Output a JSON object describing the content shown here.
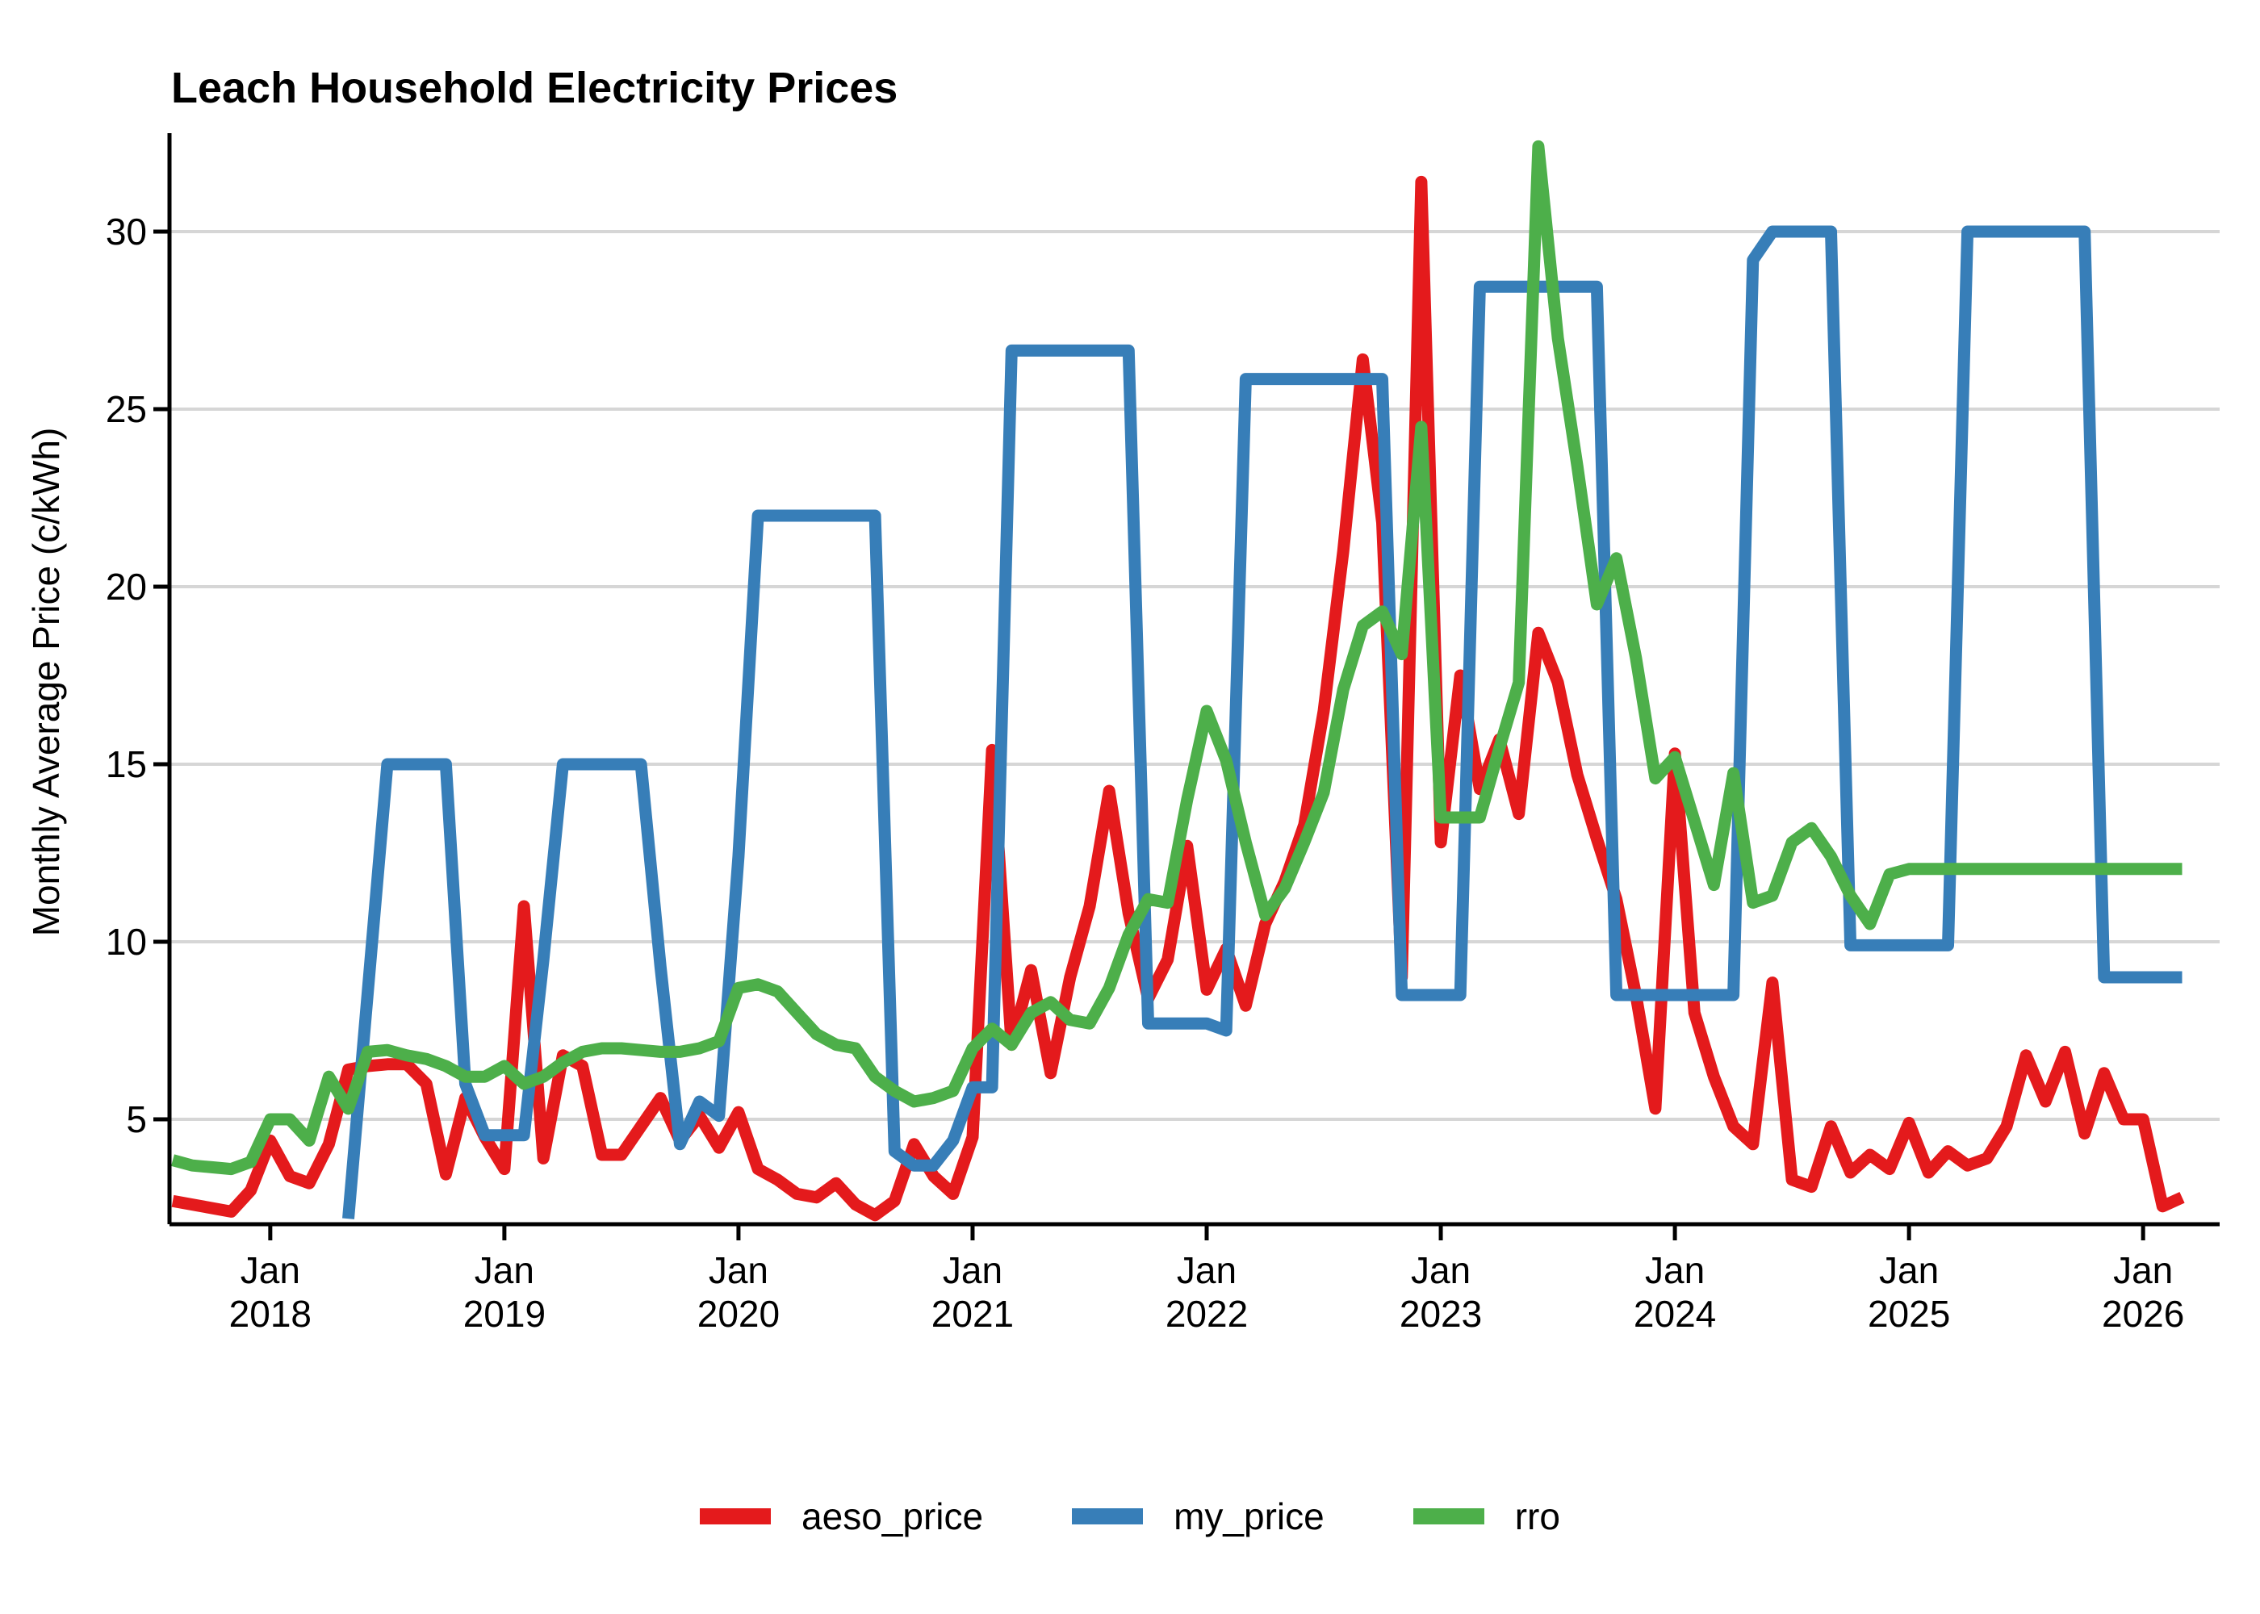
{
  "title": "Leach Household Electricity Prices",
  "y_axis": {
    "label": "Monthly Average Price (c/kWh)",
    "ticks": [
      5,
      10,
      15,
      20,
      25,
      30
    ]
  },
  "x_axis": {
    "ticks": [
      {
        "line1": "Jan",
        "line2": "2018",
        "x": "2018-01"
      },
      {
        "line1": "Jan",
        "line2": "2019",
        "x": "2019-01"
      },
      {
        "line1": "Jan",
        "line2": "2020",
        "x": "2020-01"
      },
      {
        "line1": "Jan",
        "line2": "2021",
        "x": "2021-01"
      },
      {
        "line1": "Jan",
        "line2": "2022",
        "x": "2022-01"
      },
      {
        "line1": "Jan",
        "line2": "2023",
        "x": "2023-01"
      },
      {
        "line1": "Jan",
        "line2": "2024",
        "x": "2024-01"
      },
      {
        "line1": "Jan",
        "line2": "2025",
        "x": "2025-01"
      },
      {
        "line1": "Jan",
        "line2": "2026",
        "x": "2026-01"
      }
    ]
  },
  "legend": {
    "items": [
      {
        "label": "aeso_price",
        "color": "#E41A1C"
      },
      {
        "label": "my_price",
        "color": "#377EB8"
      },
      {
        "label": "rro",
        "color": "#4DAF4A"
      }
    ]
  },
  "colors": {
    "grid": "#D6D6D6",
    "axis": "#000000",
    "background": "#FFFFFF"
  },
  "chart_data": {
    "type": "line",
    "title": "Leach Household Electricity Prices",
    "xlabel": "",
    "ylabel": "Monthly Average Price (c/kWh)",
    "ylim": [
      2.0,
      32.8
    ],
    "grid": "horizontal-only",
    "legend_position": "bottom-center",
    "x": [
      "2017-08",
      "2017-09",
      "2017-10",
      "2017-11",
      "2017-12",
      "2018-01",
      "2018-02",
      "2018-03",
      "2018-04",
      "2018-05",
      "2018-06",
      "2018-07",
      "2018-08",
      "2018-09",
      "2018-10",
      "2018-11",
      "2018-12",
      "2019-01",
      "2019-02",
      "2019-03",
      "2019-04",
      "2019-05",
      "2019-06",
      "2019-07",
      "2019-08",
      "2019-09",
      "2019-10",
      "2019-11",
      "2019-12",
      "2020-01",
      "2020-02",
      "2020-03",
      "2020-04",
      "2020-05",
      "2020-06",
      "2020-07",
      "2020-08",
      "2020-09",
      "2020-10",
      "2020-11",
      "2020-12",
      "2021-01",
      "2021-02",
      "2021-03",
      "2021-04",
      "2021-05",
      "2021-06",
      "2021-07",
      "2021-08",
      "2021-09",
      "2021-10",
      "2021-11",
      "2021-12",
      "2022-01",
      "2022-02",
      "2022-03",
      "2022-04",
      "2022-05",
      "2022-06",
      "2022-07",
      "2022-08",
      "2022-09",
      "2022-10",
      "2022-11",
      "2022-12",
      "2023-01",
      "2023-02",
      "2023-03",
      "2023-04",
      "2023-05",
      "2023-06",
      "2023-07",
      "2023-08",
      "2023-09",
      "2023-10",
      "2023-11",
      "2023-12",
      "2024-01",
      "2024-02",
      "2024-03",
      "2024-04",
      "2024-05",
      "2024-06",
      "2024-07",
      "2024-08",
      "2024-09",
      "2024-10",
      "2024-11",
      "2024-12",
      "2025-01",
      "2025-02",
      "2025-03",
      "2025-04",
      "2025-05",
      "2025-06",
      "2025-07",
      "2025-08",
      "2025-09",
      "2025-10",
      "2025-11",
      "2025-12",
      "2026-01",
      "2026-02",
      "2026-03"
    ],
    "series": [
      {
        "name": "aeso_price",
        "color": "#E41A1C",
        "values": [
          2.7,
          2.6,
          2.5,
          2.4,
          3.0,
          4.4,
          3.4,
          3.2,
          4.3,
          6.4,
          6.5,
          6.55,
          6.55,
          6.0,
          3.45,
          5.6,
          4.5,
          3.6,
          11.0,
          3.9,
          6.8,
          6.5,
          4.0,
          4.0,
          4.8,
          5.6,
          4.4,
          5.1,
          4.2,
          5.2,
          3.6,
          3.3,
          2.9,
          2.8,
          3.2,
          2.6,
          2.3,
          2.7,
          4.3,
          3.4,
          2.9,
          4.5,
          15.4,
          7.1,
          9.2,
          6.3,
          9.0,
          11.0,
          14.25,
          10.8,
          8.4,
          9.5,
          12.7,
          8.65,
          9.8,
          8.2,
          10.5,
          11.7,
          13.3,
          16.5,
          21.0,
          26.4,
          21.8,
          9.0,
          31.4,
          12.8,
          17.5,
          14.3,
          15.7,
          13.6,
          18.7,
          17.3,
          14.7,
          12.9,
          11.2,
          8.5,
          5.3,
          15.3,
          8.0,
          6.2,
          4.8,
          4.3,
          8.85,
          3.3,
          3.1,
          4.8,
          3.5,
          4.0,
          3.6,
          4.9,
          3.5,
          4.1,
          3.7,
          3.9,
          4.8,
          6.8,
          5.5,
          6.9,
          4.6,
          6.3,
          5.0,
          5.0,
          2.55,
          2.8
        ]
      },
      {
        "name": "my_price",
        "color": "#377EB8",
        "values": [
          null,
          null,
          null,
          null,
          null,
          null,
          null,
          null,
          null,
          2.2,
          8.6,
          15,
          15,
          15,
          15,
          6.0,
          4.55,
          4.55,
          4.55,
          9.5,
          15,
          15,
          15,
          15,
          15,
          9.3,
          4.3,
          5.5,
          5.1,
          12.4,
          22,
          22,
          22,
          22,
          22,
          22,
          22,
          4.1,
          3.7,
          3.7,
          4.4,
          5.9,
          5.9,
          26.65,
          26.65,
          26.65,
          26.65,
          26.65,
          26.65,
          26.65,
          7.7,
          7.7,
          7.7,
          7.7,
          7.5,
          25.85,
          25.85,
          25.85,
          25.85,
          25.85,
          25.85,
          25.85,
          25.85,
          8.5,
          8.5,
          8.5,
          8.5,
          28.45,
          28.45,
          28.45,
          28.45,
          28.45,
          28.45,
          28.45,
          8.5,
          8.5,
          8.5,
          8.5,
          8.5,
          8.5,
          8.5,
          29.2,
          30,
          30,
          30,
          30,
          9.9,
          9.9,
          9.9,
          9.9,
          9.9,
          9.9,
          30,
          30,
          30,
          30,
          30,
          30,
          30,
          9.0,
          9.0,
          9.0,
          9.0,
          9.0
        ]
      },
      {
        "name": "rro",
        "color": "#4DAF4A",
        "values": [
          3.85,
          3.7,
          3.65,
          3.6,
          3.8,
          5.0,
          5.0,
          4.4,
          6.2,
          5.3,
          6.9,
          6.95,
          6.8,
          6.7,
          6.5,
          6.2,
          6.2,
          6.5,
          6.0,
          6.2,
          6.6,
          6.9,
          7.0,
          7.0,
          6.95,
          6.9,
          6.9,
          7.0,
          7.2,
          8.7,
          8.8,
          8.6,
          8.0,
          7.4,
          7.1,
          7.0,
          6.2,
          5.8,
          5.5,
          5.6,
          5.8,
          7.0,
          7.55,
          7.1,
          8.0,
          8.3,
          7.8,
          7.7,
          8.7,
          10.2,
          11.2,
          11.1,
          14.0,
          16.5,
          15.1,
          12.8,
          10.75,
          11.5,
          12.8,
          14.2,
          17.1,
          18.9,
          19.3,
          18.1,
          24.5,
          13.5,
          13.5,
          13.5,
          15.45,
          17.3,
          32.4,
          27.0,
          23.4,
          19.5,
          20.8,
          18.0,
          14.6,
          15.2,
          13.4,
          11.6,
          14.75,
          11.1,
          11.3,
          12.8,
          13.2,
          12.4,
          11.3,
          10.5,
          11.9,
          12.05,
          12.05,
          12.05,
          12.05,
          12.05,
          12.05,
          12.05,
          12.05,
          12.05,
          12.05,
          12.05,
          12.05,
          12.05,
          12.05,
          12.05
        ]
      }
    ]
  }
}
